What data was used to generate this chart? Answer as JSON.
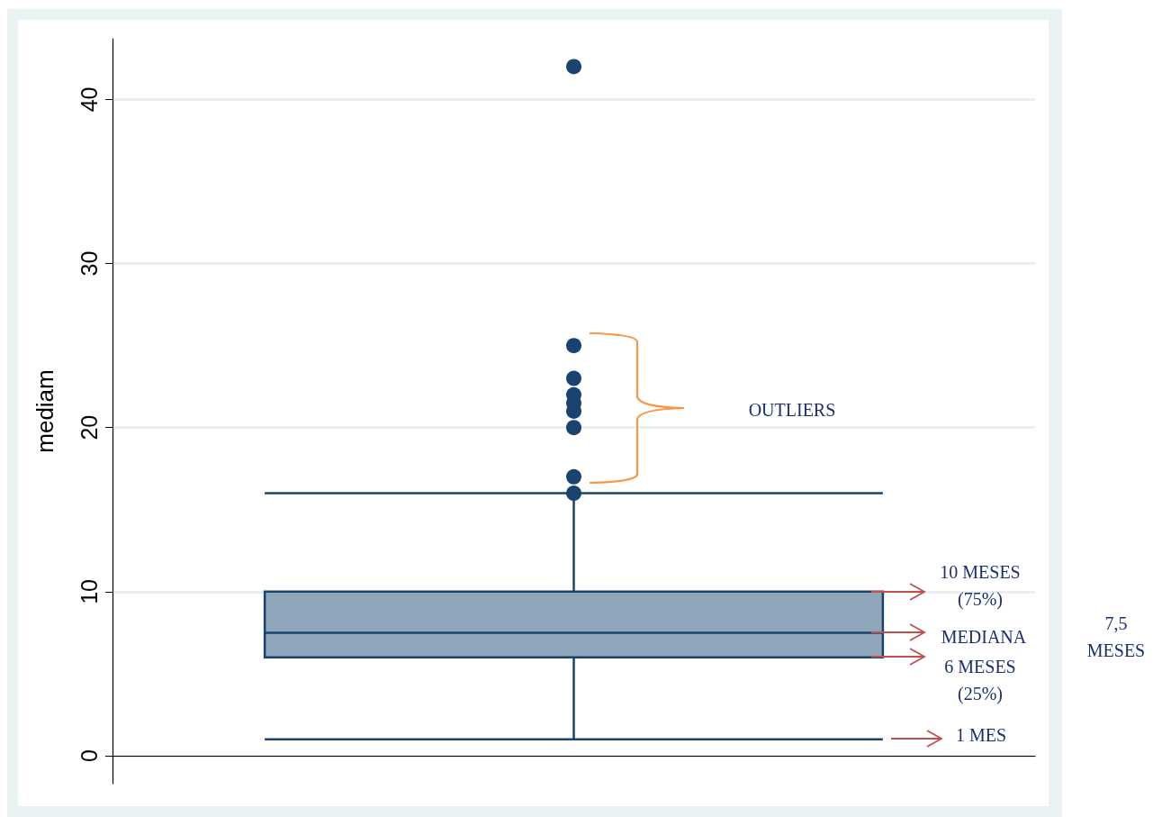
{
  "chart_data": {
    "type": "box",
    "ylabel": "mediam",
    "categories": [
      null
    ],
    "series": [
      {
        "color": "#1a4470",
        "boxes": [
          {
            "low": 1,
            "q1": 6,
            "median": 7.5,
            "q3": 10,
            "high": 16,
            "outliers": [
              16,
              17,
              20,
              21,
              21.5,
              22,
              23,
              25,
              42
            ]
          }
        ]
      }
    ],
    "ylim": [
      -1.7,
      43.7
    ],
    "yticks": [
      0,
      10,
      20,
      30,
      40
    ],
    "grid": "y",
    "annotations": [
      "OUTLIERS",
      "10 MESES\n(75%)",
      "MEDIANA",
      "7,5 MESES",
      "6 MESES\n(25%)",
      "1 MES"
    ]
  }
}
